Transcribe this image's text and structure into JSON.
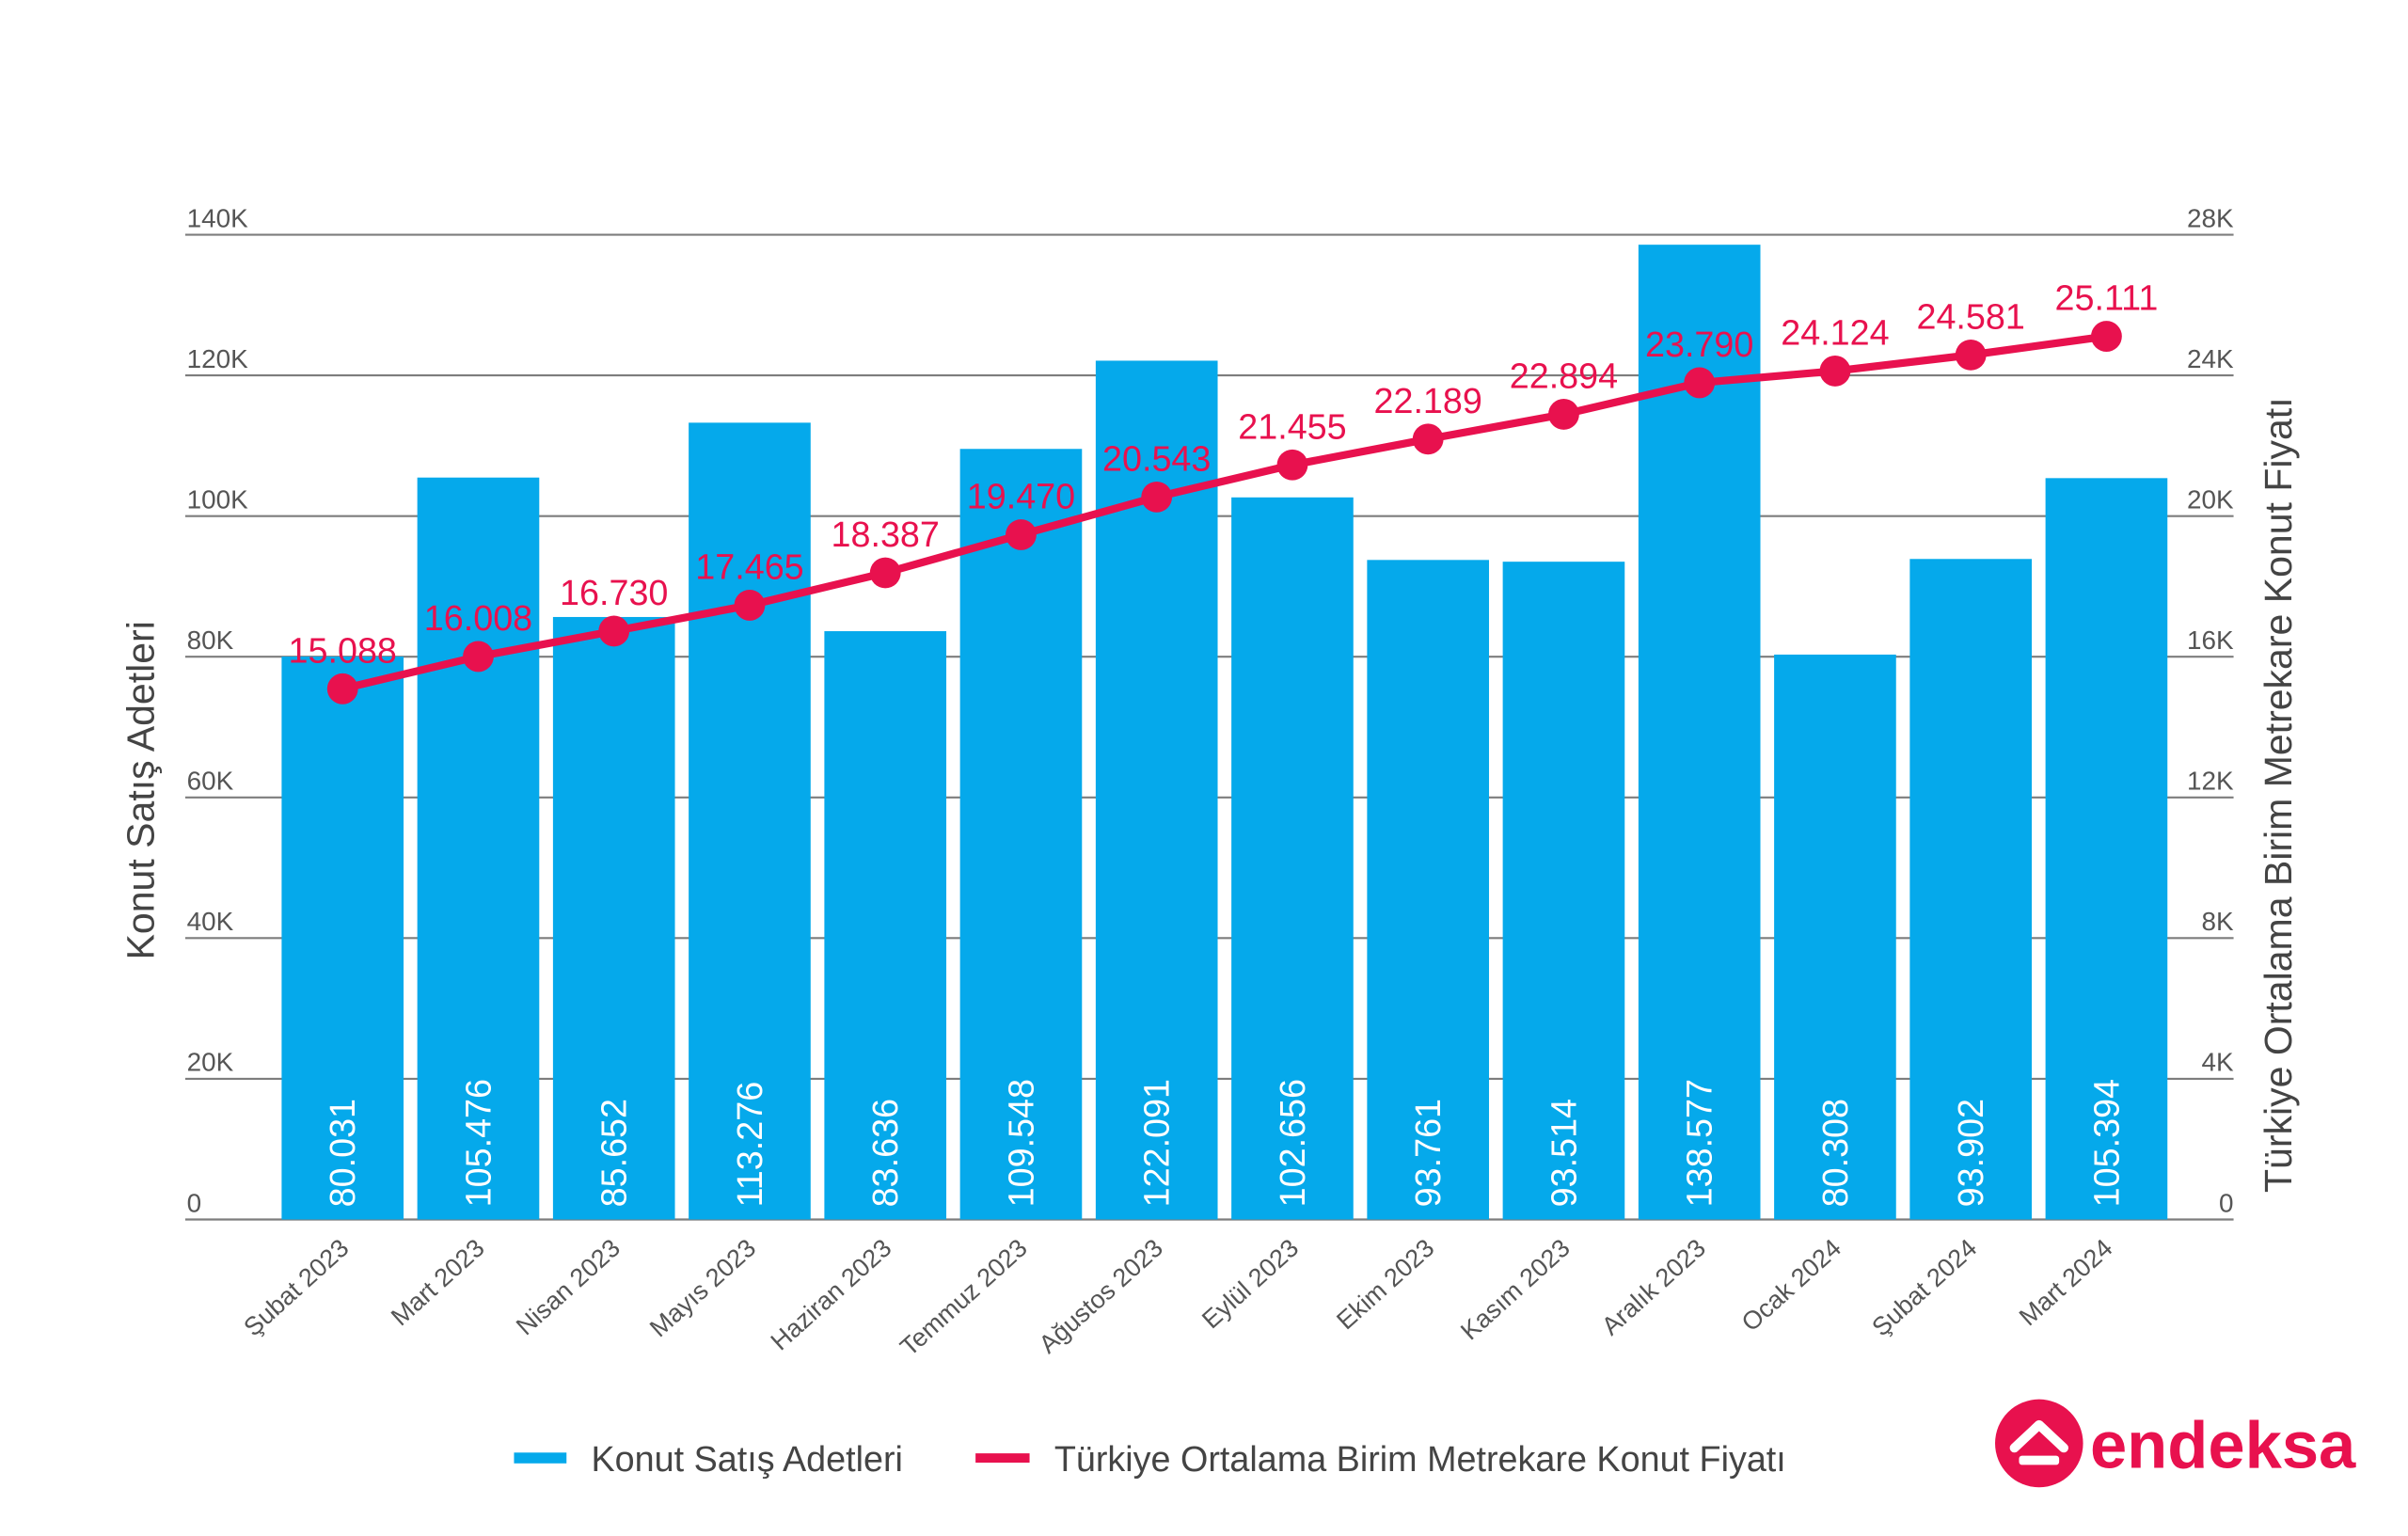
{
  "chart_data": {
    "type": "bar",
    "categories": [
      "Şubat 2023",
      "Mart 2023",
      "Nisan 2023",
      "Mayıs 2023",
      "Haziran 2023",
      "Temmuz 2023",
      "Ağustos 2023",
      "Eylül 2023",
      "Ekim 2023",
      "Kasım 2023",
      "Aralık 2023",
      "Ocak 2024",
      "Şubat 2024",
      "Mart 2024"
    ],
    "series": [
      {
        "name": "Konut Satış Adetleri",
        "type": "bar",
        "y_axis": "left",
        "color": "#05A9EB",
        "values": [
          80031,
          105476,
          85652,
          113276,
          83636,
          109548,
          122091,
          102656,
          93761,
          93514,
          138577,
          80308,
          93902,
          105394
        ],
        "labels": [
          "80.031",
          "105.476",
          "85.652",
          "113.276",
          "83.636",
          "109.548",
          "122.091",
          "102.656",
          "93.761",
          "93.514",
          "138.577",
          "80.308",
          "93.902",
          "105.394"
        ]
      },
      {
        "name": "Türkiye Ortalama Birim Metrekare Konut Fiyatı",
        "type": "line",
        "y_axis": "right",
        "color": "#E8114E",
        "values": [
          15088,
          16008,
          16730,
          17465,
          18387,
          19470,
          20543,
          21455,
          22189,
          22894,
          23790,
          24124,
          24581,
          25111
        ],
        "labels": [
          "15.088",
          "16.008",
          "16.730",
          "17.465",
          "18.387",
          "19.470",
          "20.543",
          "21.455",
          "22.189",
          "22.894",
          "23.790",
          "24.124",
          "24.581",
          "25.111"
        ]
      }
    ],
    "ylabel_left": "Konut Satış Adetleri",
    "ylabel_right": "Türkiye Ortalama Birim Metrekare Konut Fiyatı",
    "y_left": {
      "range": [
        0,
        140000
      ],
      "ticks": [
        0,
        20000,
        40000,
        60000,
        80000,
        100000,
        120000,
        140000
      ],
      "tick_labels": [
        "0",
        "20K",
        "40K",
        "60K",
        "80K",
        "100K",
        "120K",
        "140K"
      ]
    },
    "y_right": {
      "range": [
        0,
        28000
      ],
      "ticks": [
        0,
        4000,
        8000,
        12000,
        16000,
        20000,
        24000,
        28000
      ],
      "tick_labels": [
        "0",
        "4K",
        "8K",
        "12K",
        "16K",
        "20K",
        "24K",
        "28K"
      ]
    },
    "grid": true,
    "legend": "bottom"
  },
  "brand": {
    "name": "endeksa",
    "icon": "house-icon",
    "color": "#E8114E"
  },
  "colors": {
    "bar_label": "#FFFFFF",
    "tick_text": "#555555",
    "axis_title": "#444444",
    "legend_text": "#444444",
    "gridline": "#7D7D7D"
  }
}
